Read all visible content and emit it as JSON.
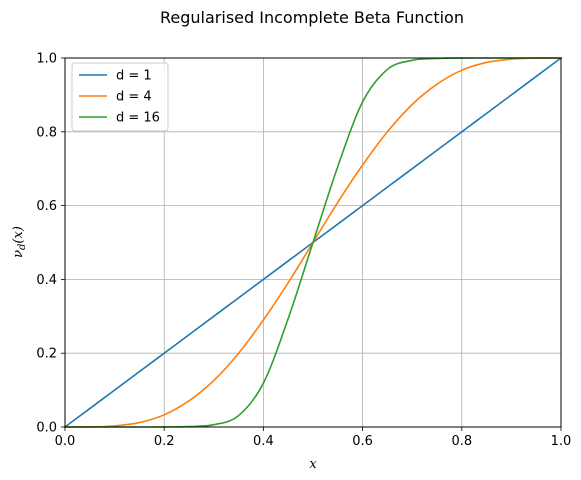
{
  "chart_data": {
    "type": "line",
    "title": "Regularised Incomplete Beta Function",
    "xlabel": "x",
    "ylabel_main": "ν",
    "ylabel_sub": "d",
    "ylabel_tail": "(x)",
    "xlim": [
      0.0,
      1.0
    ],
    "ylim": [
      0.0,
      1.0
    ],
    "xticks": [
      0.0,
      0.2,
      0.4,
      0.6,
      0.8,
      1.0
    ],
    "yticks": [
      0.0,
      0.2,
      0.4,
      0.6,
      0.8,
      1.0
    ],
    "xtick_labels": [
      "0.0",
      "0.2",
      "0.4",
      "0.6",
      "0.8",
      "1.0"
    ],
    "ytick_labels": [
      "0.0",
      "0.2",
      "0.4",
      "0.6",
      "0.8",
      "1.0"
    ],
    "grid": true,
    "legend_position": "top-left",
    "x": [
      0.0,
      0.05,
      0.1,
      0.15,
      0.2,
      0.25,
      0.3,
      0.35,
      0.4,
      0.45,
      0.5,
      0.55,
      0.6,
      0.65,
      0.7,
      0.75,
      0.8,
      0.85,
      0.9,
      0.95,
      1.0
    ],
    "series": [
      {
        "name": "d = 1",
        "color": "#1f77b4",
        "values": [
          0.0,
          0.05,
          0.1,
          0.15,
          0.2,
          0.25,
          0.3,
          0.35,
          0.4,
          0.45,
          0.5,
          0.55,
          0.6,
          0.65,
          0.7,
          0.75,
          0.8,
          0.85,
          0.9,
          0.95,
          1.0
        ]
      },
      {
        "name": "d = 4",
        "color": "#ff7f0e",
        "values": [
          0.0,
          0.0002,
          0.003,
          0.012,
          0.033,
          0.071,
          0.126,
          0.2,
          0.29,
          0.391,
          0.5,
          0.609,
          0.71,
          0.8,
          0.874,
          0.929,
          0.967,
          0.988,
          0.997,
          0.9998,
          1.0
        ]
      },
      {
        "name": "d = 16",
        "color": "#2ca02c",
        "values": [
          0.0,
          0.0,
          0.0,
          0.0,
          0.0002,
          0.0012,
          0.0062,
          0.031,
          0.119,
          0.294,
          0.5,
          0.706,
          0.881,
          0.969,
          0.9938,
          0.9988,
          0.9998,
          1.0,
          1.0,
          1.0,
          1.0
        ]
      }
    ]
  }
}
